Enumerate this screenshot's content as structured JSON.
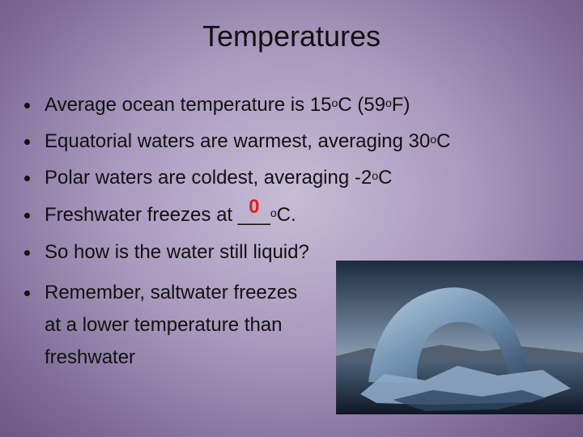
{
  "title": "Temperatures",
  "bullets": [
    [
      "Average ocean temperature is 15",
      "o",
      "C (59",
      "o",
      "F)"
    ],
    [
      "Equatorial waters are warmest, averaging 30",
      "o",
      "C"
    ],
    [
      "Polar waters are coldest, averaging -2",
      "o",
      "C"
    ],
    [
      "Freshwater freezes at ",
      "___",
      "o",
      "C."
    ],
    [
      "So how is the water still liquid?"
    ],
    [
      "Remember, saltwater freezes",
      "at a lower temperature than",
      "freshwater"
    ]
  ],
  "answer": "0"
}
